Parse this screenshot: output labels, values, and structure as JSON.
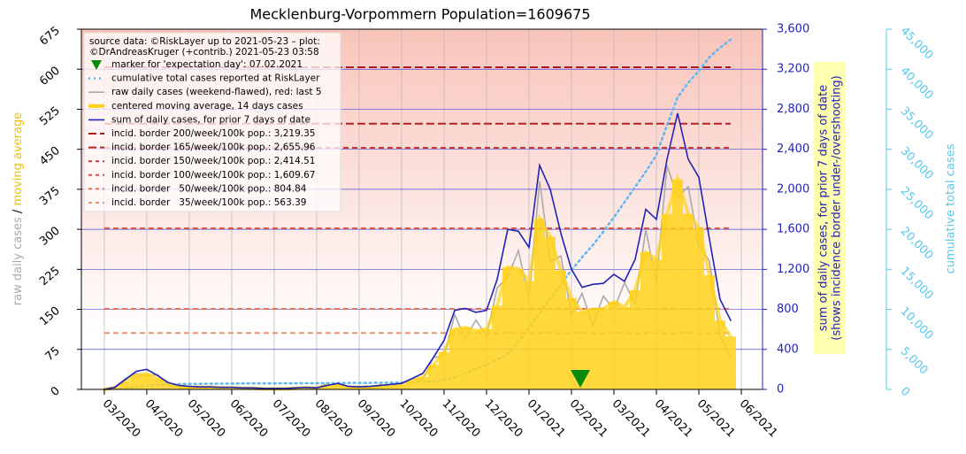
{
  "chart_data": {
    "type": "line",
    "title": "Mecklenburg-Vorpommern Population=1609675",
    "source_note": [
      "source data: ©RiskLayer up to 2021-05-23 – plot:",
      "©DrAndreasKruger (+contrib.) 2021-05-23 03:58"
    ],
    "y_label": [
      "raw daily cases",
      "/",
      "moving average"
    ],
    "y2_label": [
      "sum of daily cases, for prior 7 days of date",
      "(shows incidence border under-/overshooting)"
    ],
    "y3_label": "cumulative total cases",
    "x": [
      0,
      0.25,
      0.5,
      0.75,
      1,
      1.25,
      1.5,
      1.75,
      2,
      2.25,
      2.5,
      2.75,
      3,
      3.25,
      3.5,
      3.75,
      4,
      4.25,
      4.5,
      4.75,
      5,
      5.25,
      5.5,
      5.75,
      6,
      6.25,
      6.5,
      6.75,
      7,
      7.25,
      7.5,
      7.75,
      8,
      8.25,
      8.5,
      8.75,
      9,
      9.25,
      9.5,
      9.75,
      10,
      10.25,
      10.5,
      10.75,
      11,
      11.25,
      11.5,
      11.75,
      12,
      12.25,
      12.5,
      12.75,
      13,
      13.25,
      13.5,
      13.75,
      14,
      14.25,
      14.5,
      14.75
    ],
    "xlim": [
      -0.54,
      15.5
    ],
    "xticks": [
      {
        "value": 0,
        "label": "03/2020"
      },
      {
        "value": 1,
        "label": "04/2020"
      },
      {
        "value": 2,
        "label": "05/2020"
      },
      {
        "value": 3,
        "label": "06/2020"
      },
      {
        "value": 4,
        "label": "07/2020"
      },
      {
        "value": 5,
        "label": "08/2020"
      },
      {
        "value": 6,
        "label": "09/2020"
      },
      {
        "value": 7,
        "label": "10/2020"
      },
      {
        "value": 8,
        "label": "11/2020"
      },
      {
        "value": 9,
        "label": "12/2020"
      },
      {
        "value": 10,
        "label": "01/2021"
      },
      {
        "value": 11,
        "label": "02/2021"
      },
      {
        "value": 12,
        "label": "03/2021"
      },
      {
        "value": 13,
        "label": "04/2021"
      },
      {
        "value": 14,
        "label": "05/2021"
      },
      {
        "value": 15,
        "label": "06/2021"
      }
    ],
    "ylim": [
      0,
      675
    ],
    "yticks": [
      0,
      75,
      150,
      225,
      300,
      375,
      450,
      525,
      600,
      675
    ],
    "y2lim": [
      0,
      3600
    ],
    "y2ticks": [
      0,
      400,
      800,
      {
        "value": 1200,
        "label": "1,200"
      },
      {
        "value": 1600,
        "label": "1,600"
      },
      {
        "value": 2000,
        "label": "2,000"
      },
      {
        "value": 2400,
        "label": "2,400"
      },
      {
        "value": 2800,
        "label": "2,800"
      },
      {
        "value": 3200,
        "label": "3,200"
      },
      {
        "value": 3600,
        "label": "3,600"
      }
    ],
    "y3lim": [
      0,
      45000
    ],
    "y3ticks": [
      0,
      {
        "value": 5000,
        "label": "5,000"
      },
      {
        "value": 10000,
        "label": "10,000"
      },
      {
        "value": 15000,
        "label": "15,000"
      },
      {
        "value": 20000,
        "label": "20,000"
      },
      {
        "value": 25000,
        "label": "25,000"
      },
      {
        "value": 30000,
        "label": "30,000"
      },
      {
        "value": 35000,
        "label": "35,000"
      },
      {
        "value": 40000,
        "label": "40,000"
      },
      {
        "value": 45000,
        "label": "45,000"
      }
    ],
    "grid": true,
    "marker": {
      "name": "marker for 'expectation day': 07.02.2021",
      "x": 11.21,
      "value": 0,
      "color": "#0a8a0a"
    },
    "series": [
      {
        "name": "cumulative total cases reported at RiskLayer",
        "color": "#5bb8f5",
        "axis": "y3",
        "style": "dotted",
        "values": [
          0,
          50,
          150,
          300,
          450,
          550,
          620,
          660,
          690,
          700,
          710,
          720,
          730,
          740,
          745,
          750,
          755,
          760,
          765,
          770,
          775,
          785,
          800,
          810,
          815,
          820,
          830,
          840,
          850,
          880,
          920,
          1000,
          1200,
          1500,
          2000,
          2600,
          3100,
          3700,
          4400,
          5900,
          7700,
          9500,
          11300,
          13100,
          14900,
          16500,
          18000,
          19700,
          21500,
          23400,
          25300,
          27200,
          29300,
          33000,
          36500,
          38300,
          39800,
          41500,
          42700,
          43700
        ]
      },
      {
        "name": "raw daily cases (weekend-flawed), red: last 5",
        "color": "#aaaaaa",
        "axis": "y",
        "style": "line",
        "values": [
          0,
          5,
          20,
          30,
          25,
          28,
          8,
          4,
          6,
          3,
          5,
          2,
          4,
          1,
          3,
          0,
          2,
          1,
          3,
          2,
          4,
          10,
          7,
          3,
          5,
          3,
          9,
          5,
          12,
          20,
          18,
          60,
          62,
          140,
          95,
          130,
          100,
          190,
          210,
          260,
          170,
          390,
          240,
          250,
          140,
          180,
          120,
          175,
          150,
          200,
          160,
          300,
          200,
          420,
          360,
          380,
          270,
          240,
          100,
          60
        ]
      },
      {
        "name": "centered moving average, 14 days cases",
        "color": "#ffd21a",
        "axis": "y",
        "style": "area",
        "values": [
          0,
          3,
          14,
          26,
          29,
          20,
          10,
          6,
          4,
          4,
          4,
          3,
          3,
          2,
          2,
          1,
          1,
          1,
          2,
          3,
          2,
          6,
          9,
          4,
          4,
          4,
          6,
          7,
          9,
          16,
          23,
          46,
          70,
          113,
          116,
          110,
          113,
          157,
          229,
          226,
          203,
          320,
          286,
          223,
          171,
          146,
          150,
          151,
          164,
          154,
          186,
          257,
          243,
          329,
          394,
          329,
          303,
          214,
          129,
          99
        ]
      },
      {
        "name": "sum of daily cases, for prior 7 days of date",
        "color": "#2323b5",
        "axis": "y2",
        "style": "line",
        "values": [
          0,
          20,
          100,
          180,
          200,
          140,
          70,
          40,
          30,
          25,
          25,
          20,
          20,
          15,
          15,
          10,
          10,
          10,
          15,
          20,
          15,
          40,
          60,
          30,
          25,
          30,
          40,
          50,
          60,
          110,
          160,
          320,
          490,
          790,
          810,
          770,
          790,
          1100,
          1600,
          1580,
          1420,
          2240,
          2000,
          1560,
          1200,
          1020,
          1050,
          1060,
          1150,
          1080,
          1300,
          1800,
          1700,
          2300,
          2760,
          2300,
          2120,
          1500,
          900,
          690
        ]
      }
    ],
    "borders": [
      {
        "name": "incid. border 200/week/100k pop.: 3,219.35",
        "value": 3219.35,
        "color": "#aa1a1a"
      },
      {
        "name": "incid. border 165/week/100k pop.: 2,655.96",
        "value": 2655.96,
        "color": "#b52020"
      },
      {
        "name": "incid. border 150/week/100k pop.: 2,414.51",
        "value": 2414.51,
        "color": "#c83a3a"
      },
      {
        "name": "incid. border 100/week/100k pop.: 1,609.67",
        "value": 1609.67,
        "color": "#d85545"
      },
      {
        "name": "incid. border   50/week/100k pop.: 804.84",
        "value": 804.84,
        "color": "#e47058"
      },
      {
        "name": "incid. border   35/week/100k pop.: 563.39",
        "value": 563.39,
        "color": "#eb9070"
      }
    ]
  }
}
